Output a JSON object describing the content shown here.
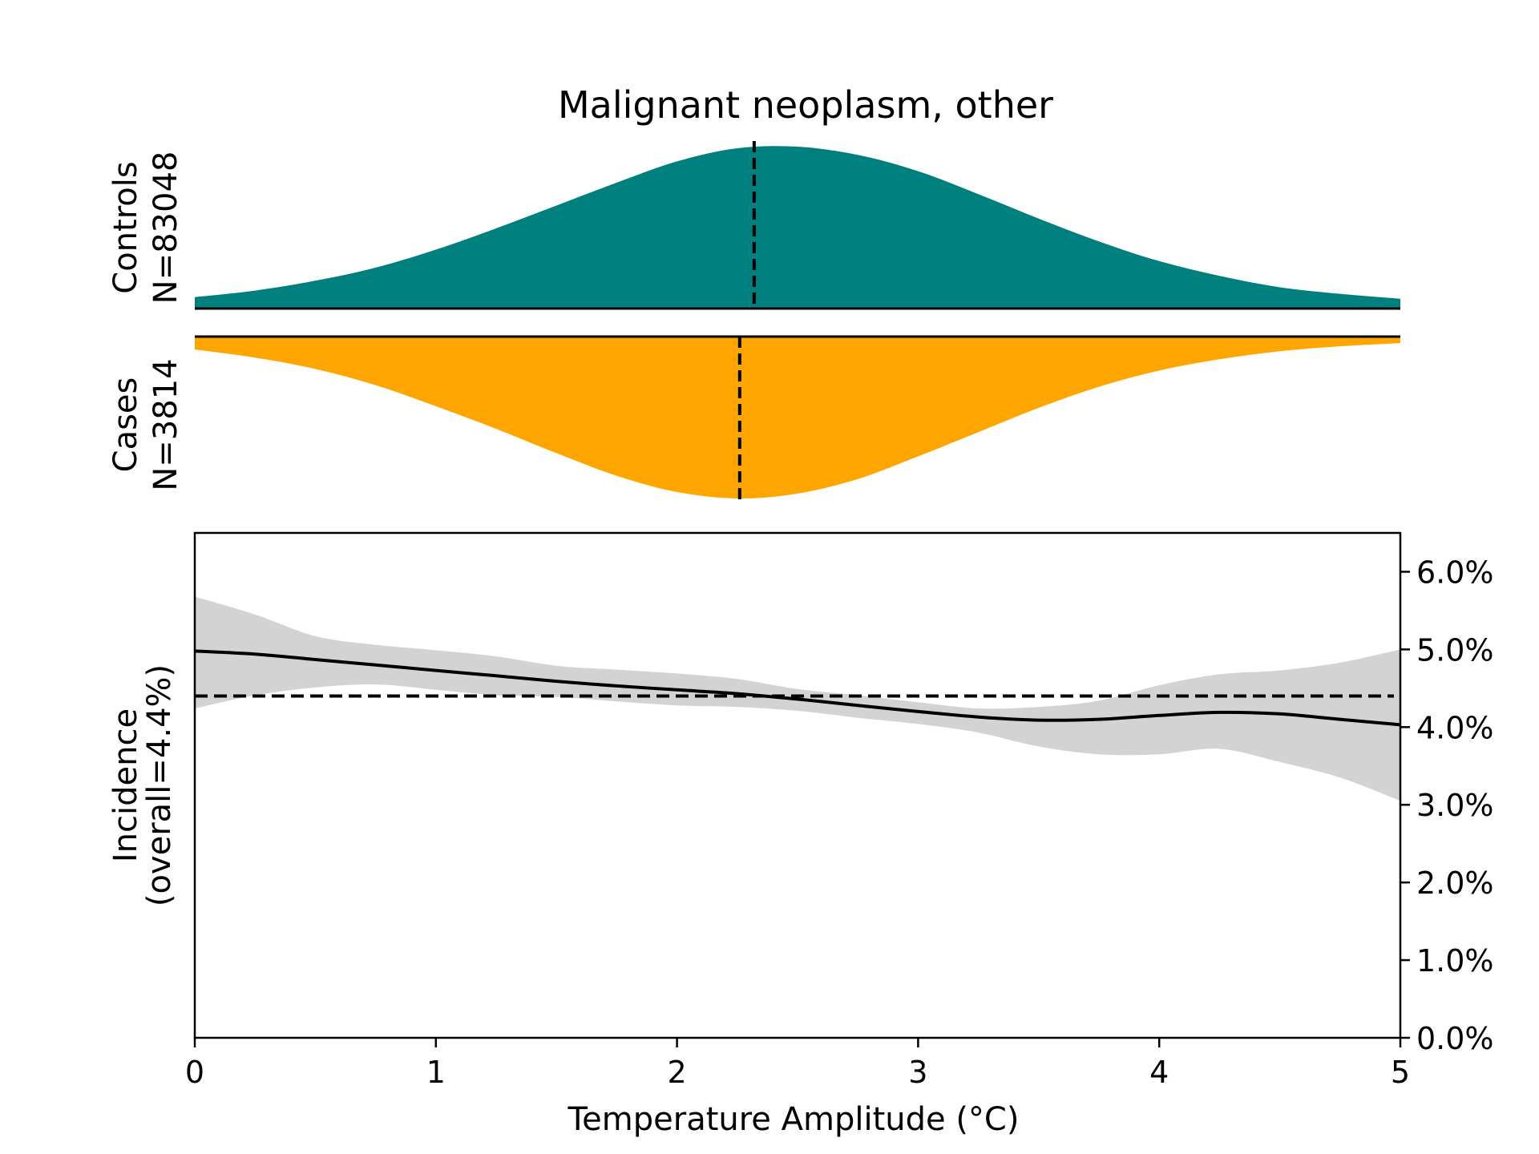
{
  "chart_data": {
    "type": "area",
    "title": "Malignant neoplasm, other",
    "colors": {
      "controls": "#007f7f",
      "cases": "#ffa500",
      "ci_band": "#d3d3d3",
      "line": "#000000"
    },
    "distribution": {
      "x_range": [
        0,
        5
      ],
      "controls": {
        "label": "Controls",
        "n_label": "N=83048",
        "mean": 2.32,
        "x": [
          0,
          0.25,
          0.5,
          0.75,
          1,
          1.25,
          1.5,
          1.75,
          2,
          2.25,
          2.5,
          2.75,
          3,
          3.25,
          3.5,
          3.75,
          4,
          4.25,
          4.5,
          4.75,
          5
        ],
        "density": [
          0.07,
          0.11,
          0.17,
          0.25,
          0.36,
          0.49,
          0.63,
          0.77,
          0.9,
          0.98,
          0.99,
          0.94,
          0.84,
          0.7,
          0.55,
          0.41,
          0.29,
          0.2,
          0.13,
          0.09,
          0.06
        ]
      },
      "cases": {
        "label": "Cases",
        "n_label": "N=3814",
        "mean": 2.26,
        "x": [
          0,
          0.25,
          0.5,
          0.75,
          1,
          1.25,
          1.5,
          1.75,
          2,
          2.25,
          2.5,
          2.75,
          3,
          3.25,
          3.5,
          3.75,
          4,
          4.25,
          4.5,
          4.75,
          5
        ],
        "density": [
          0.08,
          0.13,
          0.2,
          0.3,
          0.43,
          0.57,
          0.72,
          0.86,
          0.96,
          1.0,
          0.97,
          0.88,
          0.74,
          0.59,
          0.44,
          0.31,
          0.21,
          0.14,
          0.09,
          0.06,
          0.04
        ]
      }
    },
    "incidence": {
      "xlabel": "Temperature Amplitude (°C)",
      "ylabel_line1": "Incidence",
      "ylabel_line2": "(overall=4.4%)",
      "xlim": [
        0,
        5
      ],
      "ylim": [
        0,
        0.065
      ],
      "xticks": [
        0,
        1,
        2,
        3,
        4,
        5
      ],
      "xtick_labels": [
        "0",
        "1",
        "2",
        "3",
        "4",
        "5"
      ],
      "yticks": [
        0,
        0.01,
        0.02,
        0.03,
        0.04,
        0.05,
        0.06
      ],
      "ytick_labels": [
        "0.0%",
        "1.0%",
        "2.0%",
        "3.0%",
        "4.0%",
        "5.0%",
        "6.0%"
      ],
      "overall": 0.044,
      "x": [
        0,
        0.25,
        0.5,
        0.75,
        1,
        1.25,
        1.5,
        1.75,
        2,
        2.25,
        2.5,
        2.75,
        3,
        3.25,
        3.5,
        3.75,
        4,
        4.25,
        4.5,
        4.75,
        5
      ],
      "y": [
        0.0498,
        0.0494,
        0.0487,
        0.048,
        0.0473,
        0.0466,
        0.0459,
        0.0453,
        0.0448,
        0.0443,
        0.0436,
        0.0428,
        0.042,
        0.0413,
        0.0409,
        0.041,
        0.0415,
        0.0419,
        0.0417,
        0.041,
        0.0403
      ],
      "ci_upper": [
        0.0568,
        0.0545,
        0.0517,
        0.0506,
        0.0499,
        0.0491,
        0.0479,
        0.0474,
        0.0469,
        0.0462,
        0.0449,
        0.0441,
        0.0432,
        0.0424,
        0.0426,
        0.0434,
        0.0454,
        0.0468,
        0.0473,
        0.0483,
        0.05
      ],
      "ci_lower": [
        0.0424,
        0.0441,
        0.0451,
        0.0455,
        0.0448,
        0.0441,
        0.0439,
        0.0433,
        0.0428,
        0.0426,
        0.0421,
        0.0412,
        0.0404,
        0.0393,
        0.0375,
        0.0365,
        0.0365,
        0.0372,
        0.0355,
        0.0335,
        0.0305
      ]
    }
  }
}
